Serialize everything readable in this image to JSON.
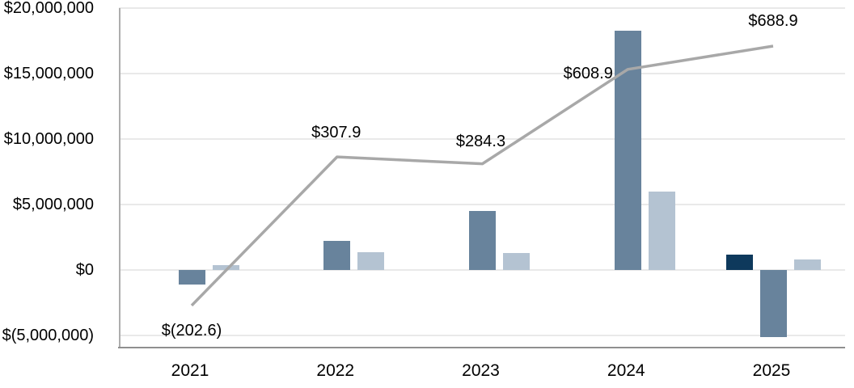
{
  "chart_data": {
    "type": "combo",
    "title": "",
    "categories": [
      "2021",
      "2022",
      "2023",
      "2024",
      "2025"
    ],
    "bar_series": [
      {
        "name": "navy-bars",
        "color": "#0e395c",
        "values": [
          null,
          null,
          null,
          null,
          1200000
        ]
      },
      {
        "name": "steel-blue-bars",
        "color": "#68839c",
        "values": [
          -1100000,
          2200000,
          4500000,
          18300000,
          -5100000
        ]
      },
      {
        "name": "light-blue-bars",
        "color": "#b4c3d2",
        "values": [
          400000,
          1350000,
          1300000,
          6000000,
          800000
        ]
      }
    ],
    "line_series": {
      "name": "gray-trend-line",
      "color": "#a8a8a8",
      "values": [
        -202.6,
        307.9,
        284.3,
        608.9,
        688.9
      ],
      "labels": [
        "$(202.6)",
        "$307.9",
        "$284.3",
        "$608.9",
        "$688.9"
      ]
    },
    "y_axis": {
      "tick_labels": [
        "$20,000,000",
        "$15,000,000",
        "$10,000,000",
        "$5,000,000",
        "$0",
        "$(5,000,000)"
      ],
      "tick_values": [
        20000000,
        15000000,
        10000000,
        5000000,
        0,
        -5000000
      ],
      "min": -5000000,
      "max": 20000000
    },
    "x_axis": {
      "tick_labels": [
        "2021",
        "2022",
        "2023",
        "2024",
        "2025"
      ]
    },
    "legend": "none",
    "grid": true,
    "colors": {
      "gridline": "#e9e9e9",
      "axis_line": "#8f8f8f",
      "text": "#000000",
      "background": "#ffffff"
    }
  }
}
